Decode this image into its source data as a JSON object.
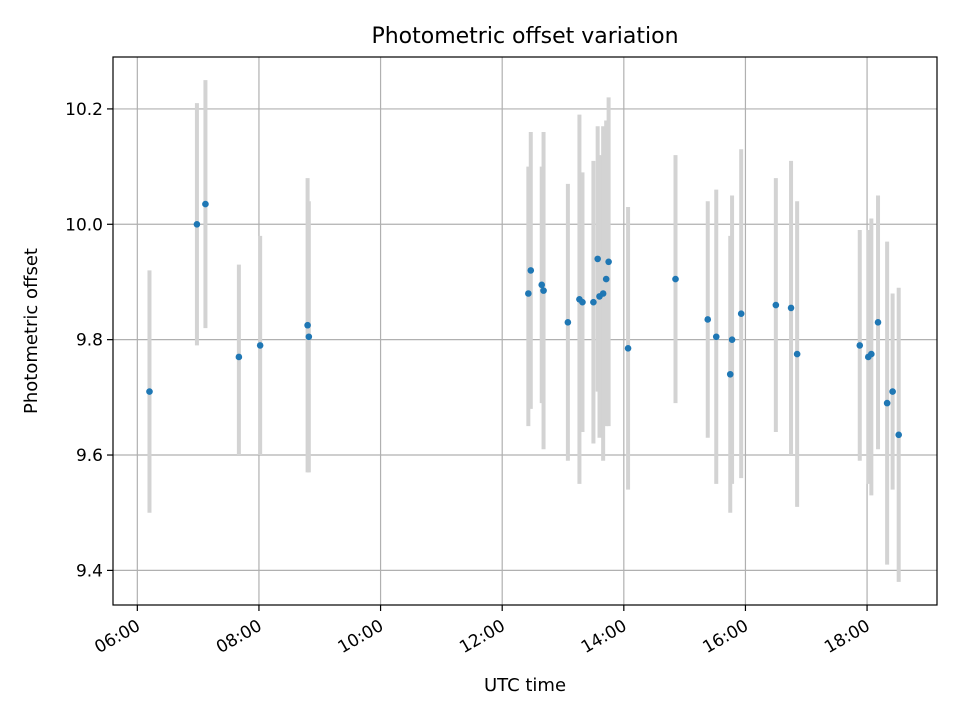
{
  "chart_data": {
    "type": "scatter",
    "title": "Photometric offset variation",
    "xlabel": "UTC time",
    "ylabel": "Photometric offset",
    "x_unit": "hours UTC",
    "xlim": [
      5.6,
      19.15
    ],
    "ylim": [
      9.34,
      10.29
    ],
    "x_ticks": [
      {
        "value": 6,
        "label": "06:00"
      },
      {
        "value": 8,
        "label": "08:00"
      },
      {
        "value": 10,
        "label": "10:00"
      },
      {
        "value": 12,
        "label": "12:00"
      },
      {
        "value": 14,
        "label": "14:00"
      },
      {
        "value": 16,
        "label": "16:00"
      },
      {
        "value": 18,
        "label": "18:00"
      }
    ],
    "y_ticks": [
      {
        "value": 9.4,
        "label": "9.4"
      },
      {
        "value": 9.6,
        "label": "9.6"
      },
      {
        "value": 9.8,
        "label": "9.8"
      },
      {
        "value": 10.0,
        "label": "10.0"
      },
      {
        "value": 10.2,
        "label": "10.2"
      }
    ],
    "grid": true,
    "point_color": "#1f77b4",
    "errorbar_color": "#d3d3d3",
    "points": [
      {
        "x": 6.2,
        "y": 9.71,
        "err_lo": 9.5,
        "err_hi": 9.92
      },
      {
        "x": 6.98,
        "y": 10.0,
        "err_lo": 9.79,
        "err_hi": 10.21
      },
      {
        "x": 7.12,
        "y": 10.035,
        "err_lo": 9.82,
        "err_hi": 10.25
      },
      {
        "x": 7.67,
        "y": 9.77,
        "err_lo": 9.6,
        "err_hi": 9.93
      },
      {
        "x": 8.02,
        "y": 9.79,
        "err_lo": 9.6,
        "err_hi": 9.98
      },
      {
        "x": 8.8,
        "y": 9.825,
        "err_lo": 9.57,
        "err_hi": 10.08
      },
      {
        "x": 8.82,
        "y": 9.805,
        "err_lo": 9.57,
        "err_hi": 10.04
      },
      {
        "x": 12.43,
        "y": 9.88,
        "err_lo": 9.65,
        "err_hi": 10.1
      },
      {
        "x": 12.47,
        "y": 9.92,
        "err_lo": 9.68,
        "err_hi": 10.16
      },
      {
        "x": 12.65,
        "y": 9.895,
        "err_lo": 9.69,
        "err_hi": 10.1
      },
      {
        "x": 12.68,
        "y": 9.885,
        "err_lo": 9.61,
        "err_hi": 10.16
      },
      {
        "x": 13.08,
        "y": 9.83,
        "err_lo": 9.59,
        "err_hi": 10.07
      },
      {
        "x": 13.27,
        "y": 9.87,
        "err_lo": 9.55,
        "err_hi": 10.19
      },
      {
        "x": 13.32,
        "y": 9.865,
        "err_lo": 9.64,
        "err_hi": 10.09
      },
      {
        "x": 13.5,
        "y": 9.865,
        "err_lo": 9.62,
        "err_hi": 10.11
      },
      {
        "x": 13.57,
        "y": 9.94,
        "err_lo": 9.71,
        "err_hi": 10.17
      },
      {
        "x": 13.6,
        "y": 9.875,
        "err_lo": 9.63,
        "err_hi": 10.12
      },
      {
        "x": 13.66,
        "y": 9.88,
        "err_lo": 9.59,
        "err_hi": 10.17
      },
      {
        "x": 13.71,
        "y": 9.905,
        "err_lo": 9.65,
        "err_hi": 10.18
      },
      {
        "x": 13.75,
        "y": 9.935,
        "err_lo": 9.65,
        "err_hi": 10.22
      },
      {
        "x": 14.07,
        "y": 9.785,
        "err_lo": 9.54,
        "err_hi": 10.03
      },
      {
        "x": 14.85,
        "y": 9.905,
        "err_lo": 9.69,
        "err_hi": 10.12
      },
      {
        "x": 15.38,
        "y": 9.835,
        "err_lo": 9.63,
        "err_hi": 10.04
      },
      {
        "x": 15.52,
        "y": 9.805,
        "err_lo": 9.55,
        "err_hi": 10.06
      },
      {
        "x": 15.75,
        "y": 9.74,
        "err_lo": 9.5,
        "err_hi": 9.98
      },
      {
        "x": 15.78,
        "y": 9.8,
        "err_lo": 9.55,
        "err_hi": 10.05
      },
      {
        "x": 15.93,
        "y": 9.845,
        "err_lo": 9.56,
        "err_hi": 10.13
      },
      {
        "x": 16.5,
        "y": 9.86,
        "err_lo": 9.64,
        "err_hi": 10.08
      },
      {
        "x": 16.75,
        "y": 9.855,
        "err_lo": 9.6,
        "err_hi": 10.11
      },
      {
        "x": 16.85,
        "y": 9.775,
        "err_lo": 9.51,
        "err_hi": 10.04
      },
      {
        "x": 17.88,
        "y": 9.79,
        "err_lo": 9.59,
        "err_hi": 9.99
      },
      {
        "x": 18.02,
        "y": 9.77,
        "err_lo": 9.55,
        "err_hi": 9.99
      },
      {
        "x": 18.07,
        "y": 9.775,
        "err_lo": 9.53,
        "err_hi": 10.01
      },
      {
        "x": 18.18,
        "y": 9.83,
        "err_lo": 9.61,
        "err_hi": 10.05
      },
      {
        "x": 18.33,
        "y": 9.69,
        "err_lo": 9.41,
        "err_hi": 9.97
      },
      {
        "x": 18.42,
        "y": 9.71,
        "err_lo": 9.54,
        "err_hi": 9.88
      },
      {
        "x": 18.52,
        "y": 9.635,
        "err_lo": 9.38,
        "err_hi": 9.89
      }
    ]
  }
}
